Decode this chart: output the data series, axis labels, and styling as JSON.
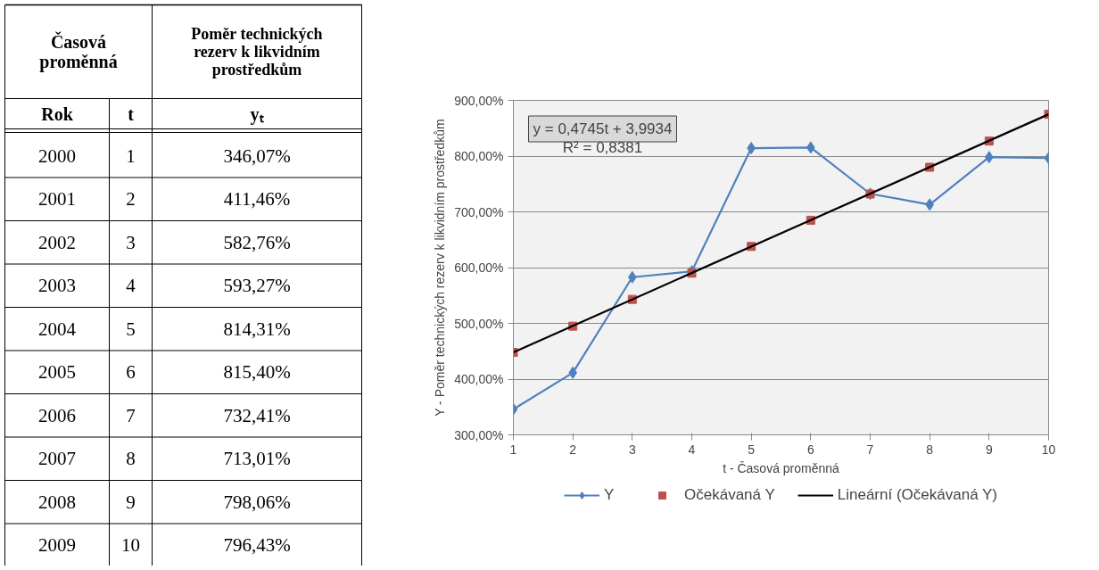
{
  "chart_data": {
    "type": "line",
    "xlabel": "t - Časová proměnná",
    "ylabel": "Y - Poměr technických rezerv k likvidním prostředkům",
    "x": [
      1,
      2,
      3,
      4,
      5,
      6,
      7,
      8,
      9,
      10
    ],
    "series": [
      {
        "name": "Y",
        "color": "#4f81bd",
        "marker": "diamond",
        "line_style": "solid",
        "values": [
          346.07,
          411.46,
          582.76,
          593.27,
          814.31,
          815.4,
          732.41,
          713.01,
          798.06,
          796.43
        ]
      },
      {
        "name": "Očekávaná Y",
        "type": "scatter",
        "color": "#c0504d",
        "marker": "square",
        "values": [
          448,
          495,
          543,
          590,
          638,
          685,
          732,
          780,
          827,
          875
        ]
      },
      {
        "name": "Lineární (Očekávaná Y)",
        "type": "line",
        "color": "#000000",
        "marker": "none",
        "line_style": "solid",
        "x": [
          1,
          10
        ],
        "values": [
          448,
          875
        ]
      }
    ],
    "xlim": [
      1,
      10
    ],
    "xticks": [
      1,
      2,
      3,
      4,
      5,
      6,
      7,
      8,
      9,
      10
    ],
    "ylim": [
      300,
      900
    ],
    "yticks": [
      {
        "value": 300,
        "label": "300,00%"
      },
      {
        "value": 400,
        "label": "400,00%"
      },
      {
        "value": 500,
        "label": "500,00%"
      },
      {
        "value": 600,
        "label": "600,00%"
      },
      {
        "value": 700,
        "label": "700,00%"
      },
      {
        "value": 800,
        "label": "800,00%"
      },
      {
        "value": 900,
        "label": "900,00%"
      }
    ],
    "grid": "y",
    "legend": "bottom",
    "annotations": [
      "y = 0,4745t + 3,9934",
      "R² = 0,8381",
      "Časová proměnná",
      "Poměr technických rezerv k likvidním prostředkům",
      "Rok",
      "t",
      "yₜ",
      "2000",
      "2001",
      "2002",
      "2003",
      "2004",
      "2005",
      "2006",
      "2007",
      "2008",
      "2009",
      "1",
      "2",
      "3",
      "4",
      "5",
      "6",
      "7",
      "8",
      "9",
      "10",
      "346,07%",
      "411,46%",
      "582,76%",
      "593,27%",
      "814,31%",
      "815,40%",
      "732,41%",
      "713,01%",
      "798,06%",
      "796,43%"
    ]
  }
}
